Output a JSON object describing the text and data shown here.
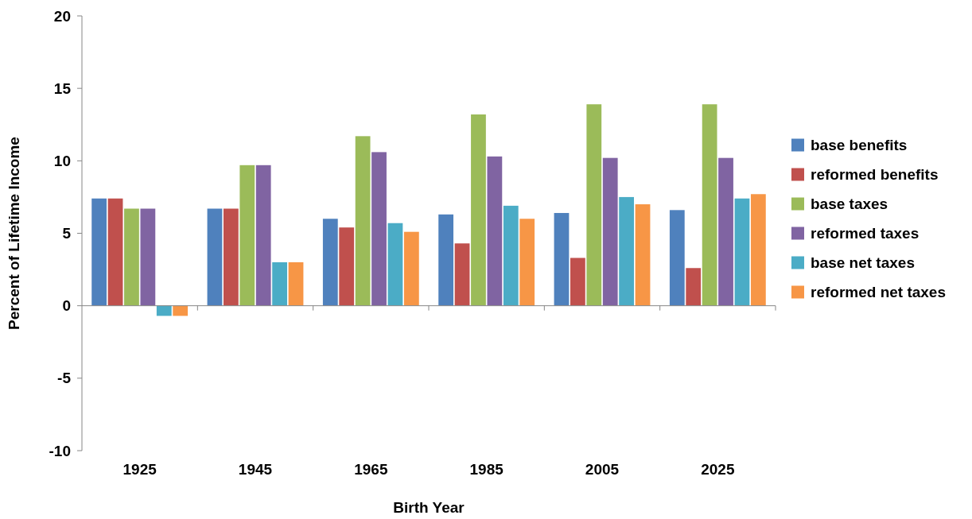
{
  "chart_data": {
    "type": "bar",
    "xlabel": "Birth Year",
    "ylabel": "Percent of Lifetime Income",
    "categories": [
      "1925",
      "1945",
      "1965",
      "1985",
      "2005",
      "2025"
    ],
    "series": [
      {
        "name": "base benefits",
        "color": "#4f81bd",
        "values": [
          7.4,
          6.7,
          6.0,
          6.3,
          6.4,
          6.6
        ]
      },
      {
        "name": "reformed benefits",
        "color": "#c0504d",
        "values": [
          7.4,
          6.7,
          5.4,
          4.3,
          3.3,
          2.6
        ]
      },
      {
        "name": "base taxes",
        "color": "#9bbb59",
        "values": [
          6.7,
          9.7,
          11.7,
          13.2,
          13.9,
          13.9
        ]
      },
      {
        "name": "reformed taxes",
        "color": "#8064a2",
        "values": [
          6.7,
          9.7,
          10.6,
          10.3,
          10.2,
          10.2
        ]
      },
      {
        "name": "base net taxes",
        "color": "#4bacc6",
        "values": [
          -0.7,
          3.0,
          5.7,
          6.9,
          7.5,
          7.4
        ]
      },
      {
        "name": "reformed net taxes",
        "color": "#f79646",
        "values": [
          -0.7,
          3.0,
          5.1,
          6.0,
          7.0,
          7.7
        ]
      }
    ],
    "ylim": [
      -10,
      20
    ],
    "yticks": [
      -10,
      -5,
      0,
      5,
      10,
      15,
      20
    ],
    "legend": "right"
  }
}
